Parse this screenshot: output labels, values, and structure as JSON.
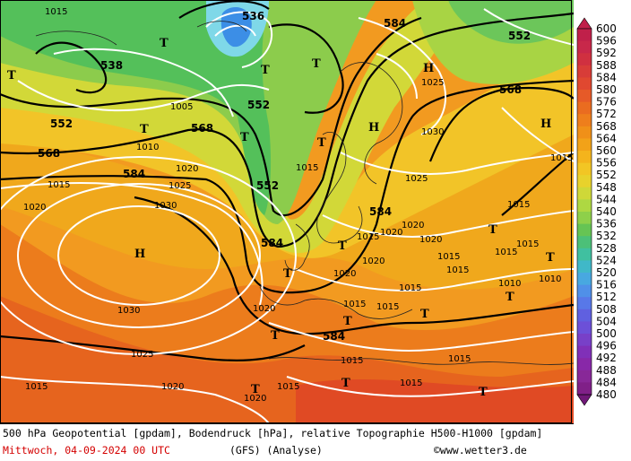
{
  "map": {
    "height_labels": [
      "536",
      "538",
      "552",
      "552",
      "552",
      "552",
      "568",
      "568",
      "568",
      "584",
      "584",
      "584",
      "584",
      "584"
    ],
    "pressure_labels": [
      "1015",
      "1025",
      "1030",
      "1010",
      "1005",
      "1020",
      "1030",
      "1025",
      "1015",
      "1020",
      "1015",
      "1020",
      "1030",
      "1025",
      "1020",
      "1015",
      "1025",
      "1020",
      "1020",
      "1015",
      "1015",
      "1020",
      "1015",
      "1015",
      "1015",
      "1010",
      "1015",
      "1010",
      "1015",
      "1015",
      "1015",
      "1015",
      "1015",
      "1015",
      "1015",
      "1020",
      "1015",
      "1020",
      "1020"
    ],
    "pressure_systems": [
      "H",
      "H",
      "H",
      "H",
      "T",
      "T",
      "T",
      "T",
      "T",
      "T",
      "T",
      "T",
      "T",
      "T",
      "T",
      "T",
      "T",
      "T",
      "T",
      "T",
      "T",
      "T"
    ]
  },
  "legend": {
    "values": [
      "600",
      "596",
      "592",
      "588",
      "584",
      "580",
      "576",
      "572",
      "568",
      "564",
      "560",
      "556",
      "552",
      "548",
      "544",
      "540",
      "536",
      "532",
      "528",
      "524",
      "520",
      "516",
      "512",
      "508",
      "504",
      "500",
      "496",
      "492",
      "488",
      "484",
      "480"
    ],
    "colors": [
      "#c0204a",
      "#c8284a",
      "#d03040",
      "#d83c38",
      "#e04830",
      "#e65a28",
      "#ea6c20",
      "#ee7e1c",
      "#f09018",
      "#f2a218",
      "#f4b41c",
      "#f2c624",
      "#e8d22c",
      "#cfd838",
      "#aed842",
      "#8ed04a",
      "#66c454",
      "#4cc078",
      "#40c0a0",
      "#40b8c8",
      "#48a8e0",
      "#5090e8",
      "#5878e8",
      "#6060e0",
      "#6c50d8",
      "#7840c8",
      "#8030b8",
      "#8828a8",
      "#882898",
      "#802088",
      "#701878"
    ]
  },
  "footer": {
    "title": "500 hPa Geopotential [gpdam], Bodendruck [hPa], relative Topographie H500-H1000 [gpdam]",
    "date": "Mittwoch, 04-09-2024  00 UTC",
    "model": "(GFS)  (Analyse)",
    "credit": "©www.wetter3.de"
  }
}
